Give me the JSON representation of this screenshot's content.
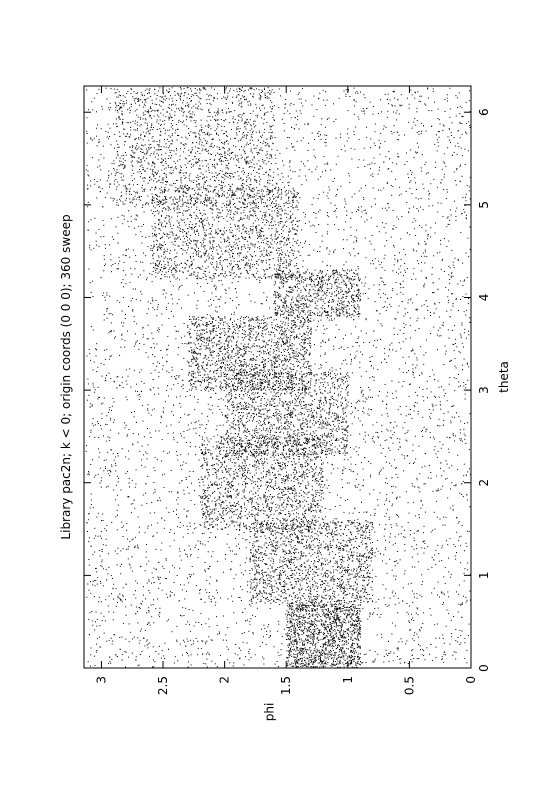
{
  "chart_data": {
    "type": "scatter",
    "title": "Library pac2n; k < 0; origin coords (0 0 0); 360 sweep",
    "xlabel": "theta",
    "ylabel": "phi",
    "xlim": [
      0,
      6.283
    ],
    "ylim": [
      0,
      3.1416
    ],
    "x_ticks": [
      0,
      1,
      2,
      3,
      4,
      5,
      6
    ],
    "y_ticks": [
      0,
      0.5,
      1,
      1.5,
      2,
      2.5,
      3
    ],
    "x_tick_labels": [
      "0",
      "1",
      "2",
      "3",
      "4",
      "5",
      "6"
    ],
    "y_tick_labels": [
      "0",
      "0.5",
      "1",
      "1.5",
      "2",
      "2.5",
      "3"
    ],
    "grid": false,
    "legend": "none",
    "orientation": "rotated 90 degrees counter-clockwise",
    "marker_color": "#000000",
    "density_bands": [
      {
        "x": [
          0.0,
          0.7
        ],
        "y": [
          0.9,
          1.5
        ],
        "density": "high"
      },
      {
        "x": [
          0.7,
          1.6
        ],
        "y": [
          0.8,
          1.8
        ],
        "density": "high"
      },
      {
        "x": [
          1.5,
          2.5
        ],
        "y": [
          1.2,
          2.2
        ],
        "density": "high"
      },
      {
        "x": [
          2.3,
          3.2
        ],
        "y": [
          1.0,
          2.0
        ],
        "density": "high"
      },
      {
        "x": [
          3.0,
          3.8
        ],
        "y": [
          1.3,
          2.3
        ],
        "density": "high"
      },
      {
        "x": [
          3.8,
          4.3
        ],
        "y": [
          0.9,
          1.6
        ],
        "density": "medium"
      },
      {
        "x": [
          4.2,
          5.2
        ],
        "y": [
          1.4,
          2.6
        ],
        "density": "high"
      },
      {
        "x": [
          5.0,
          6.283
        ],
        "y": [
          1.6,
          2.9
        ],
        "density": "high"
      },
      {
        "x": [
          0.0,
          6.283
        ],
        "y": [
          0.0,
          3.1416
        ],
        "density": "background"
      }
    ]
  }
}
